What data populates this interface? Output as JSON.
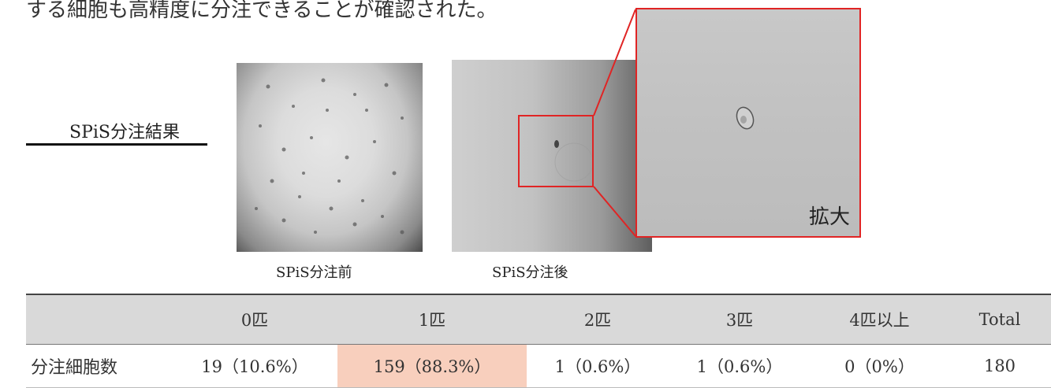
{
  "top_text": "する細胞も高精度に分注できることが確認された。",
  "section": {
    "title": "SPiS分注結果"
  },
  "images": {
    "before_caption": "SPiS分注前",
    "after_caption": "SPiS分注後",
    "zoom_label": "拡大"
  },
  "colors": {
    "highlight": "#e02424",
    "header_bg": "#d9d9d9",
    "cell_highlight": "#f8cfbd"
  },
  "table": {
    "columns": [
      "",
      "0匹",
      "1匹",
      "2匹",
      "3匹",
      "4匹以上",
      "Total"
    ],
    "row": {
      "label": "分注細胞数",
      "cells": [
        "19（10.6%）",
        "159（88.3%）",
        "1（0.6%）",
        "1（0.6%）",
        "0（0%）",
        "180"
      ]
    }
  }
}
